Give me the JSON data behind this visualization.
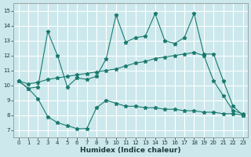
{
  "xlabel": "Humidex (Indice chaleur)",
  "bg_color": "#cce8ec",
  "line_color": "#1a7a6e",
  "grid_color": "#ffffff",
  "xlim": [
    -0.5,
    23.5
  ],
  "ylim": [
    6.5,
    15.5
  ],
  "xticks": [
    0,
    1,
    2,
    3,
    4,
    5,
    6,
    7,
    8,
    9,
    10,
    11,
    12,
    13,
    14,
    15,
    16,
    17,
    18,
    19,
    20,
    21,
    22,
    23
  ],
  "yticks": [
    7,
    8,
    9,
    10,
    11,
    12,
    13,
    14,
    15
  ],
  "line1_x": [
    0,
    1,
    2,
    3,
    4,
    5,
    6,
    7,
    8,
    9,
    10,
    11,
    12,
    13,
    14,
    15,
    16,
    17,
    18,
    19,
    20,
    21,
    22,
    23
  ],
  "line1_y": [
    10.3,
    9.8,
    9.9,
    13.6,
    12.0,
    9.9,
    10.5,
    10.4,
    10.6,
    11.8,
    14.7,
    12.9,
    13.2,
    13.3,
    14.8,
    13.0,
    12.8,
    13.2,
    14.8,
    12.1,
    12.1,
    10.3,
    8.6,
    8.0
  ],
  "line2_x": [
    0,
    1,
    2,
    3,
    4,
    5,
    6,
    7,
    8,
    9,
    10,
    11,
    12,
    13,
    14,
    15,
    16,
    17,
    18,
    19,
    20,
    21,
    22,
    23
  ],
  "line2_y": [
    10.3,
    10.1,
    10.2,
    10.4,
    10.5,
    10.6,
    10.7,
    10.8,
    10.9,
    11.0,
    11.1,
    11.3,
    11.5,
    11.6,
    11.8,
    11.9,
    12.0,
    12.1,
    12.2,
    12.0,
    10.3,
    9.3,
    8.3,
    8.1
  ],
  "line3_x": [
    0,
    1,
    2,
    3,
    4,
    5,
    6,
    7,
    8,
    9,
    10,
    11,
    12,
    13,
    14,
    15,
    16,
    17,
    18,
    19,
    20,
    21,
    22,
    23
  ],
  "line3_y": [
    10.3,
    9.8,
    9.1,
    7.9,
    7.5,
    7.3,
    7.1,
    7.1,
    8.5,
    9.0,
    8.8,
    8.6,
    8.6,
    8.5,
    8.5,
    8.4,
    8.4,
    8.3,
    8.3,
    8.2,
    8.2,
    8.1,
    8.1,
    8.0
  ]
}
